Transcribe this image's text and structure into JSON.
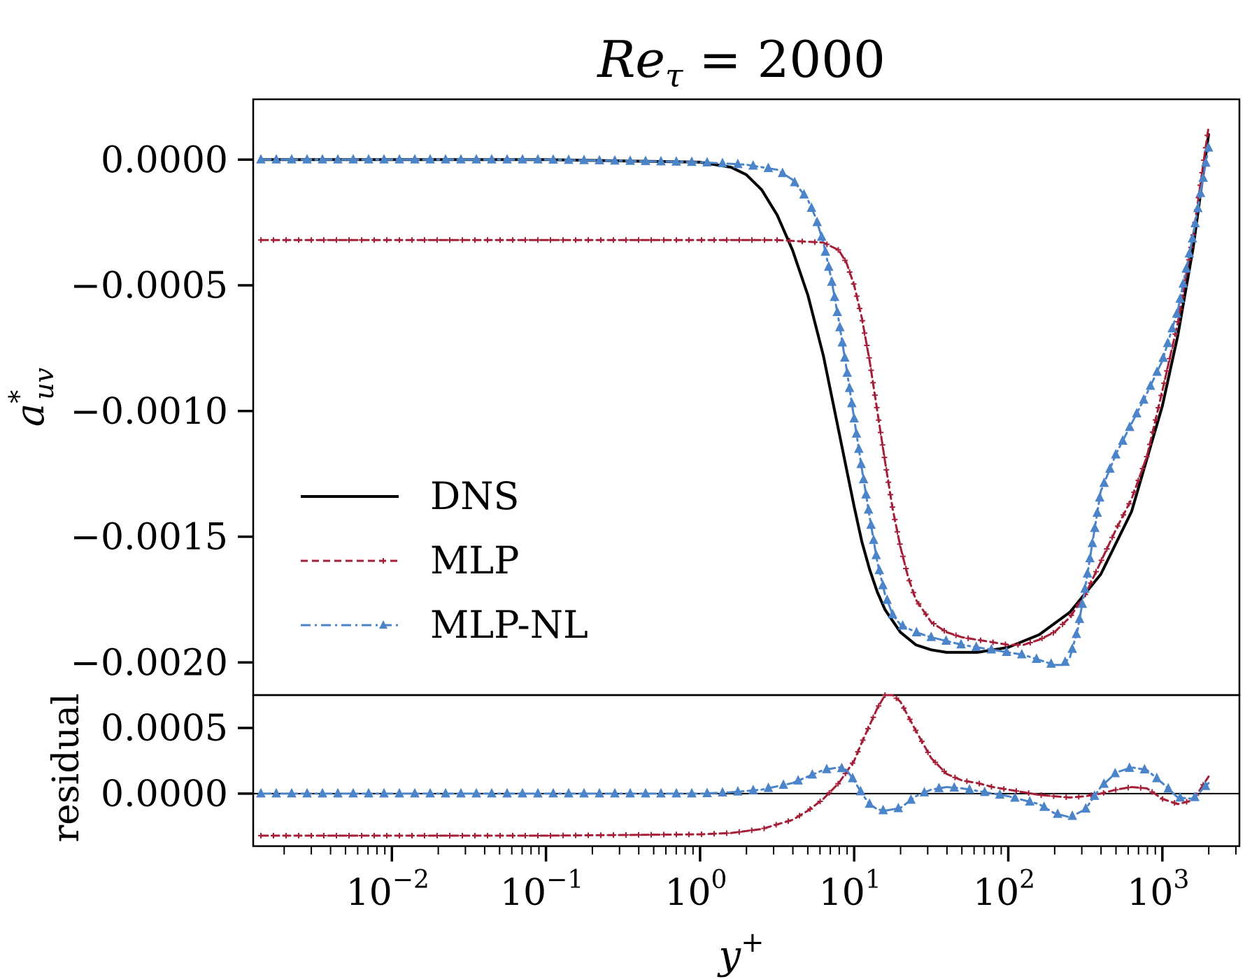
{
  "chart_data": [
    {
      "type": "line",
      "panel": "main",
      "title": "Re_τ = 2000",
      "title_parts": {
        "base": "Re",
        "sub": "τ",
        "rest": " = 2000"
      },
      "xlabel": "y+",
      "xlabel_parts": {
        "base": "y",
        "sup": "+"
      },
      "ylabel": "a*_uv",
      "ylabel_parts": {
        "base": "a",
        "sup": "*",
        "sub": "uv"
      },
      "xscale": "log",
      "xlim_log10": [
        -2.9,
        3.5
      ],
      "ylim": [
        -0.00213,
        0.00024
      ],
      "yticks": [
        0.0,
        -0.0005,
        -0.001,
        -0.0015,
        -0.002
      ],
      "ytick_labels": [
        "0.0000",
        "−0.0005",
        "−0.0010",
        "−0.0015",
        "−0.0020"
      ],
      "legend_position": "lower-left",
      "series": [
        {
          "name": "DNS",
          "color": "#000000",
          "style": "solid",
          "marker": "none",
          "x_log10": [
            -2.85,
            -1.0,
            0.0,
            0.2,
            0.3,
            0.4,
            0.5,
            0.6,
            0.7,
            0.8,
            0.85,
            0.9,
            0.95,
            1.0,
            1.05,
            1.1,
            1.15,
            1.2,
            1.3,
            1.4,
            1.5,
            1.6,
            1.7,
            1.8,
            1.9,
            2.0,
            2.2,
            2.4,
            2.6,
            2.8,
            3.0,
            3.1,
            3.2,
            3.3
          ],
          "y": [
            0.0,
            0.0,
            -1e-05,
            -3e-05,
            -6e-05,
            -0.00012,
            -0.00022,
            -0.00036,
            -0.00054,
            -0.00078,
            -0.00093,
            -0.00108,
            -0.00123,
            -0.00138,
            -0.00152,
            -0.00163,
            -0.00172,
            -0.00179,
            -0.00188,
            -0.00193,
            -0.00195,
            -0.00196,
            -0.00196,
            -0.00196,
            -0.00195,
            -0.00194,
            -0.00189,
            -0.0018,
            -0.00165,
            -0.0014,
            -0.00098,
            -0.0007,
            -0.00035,
            0.0001
          ]
        },
        {
          "name": "MLP",
          "color": "#A51E37",
          "style": "dashed",
          "marker": "plus",
          "x_log10": [
            -2.85,
            -1.0,
            0.0,
            0.5,
            0.8,
            0.9,
            0.95,
            1.0,
            1.05,
            1.1,
            1.15,
            1.2,
            1.25,
            1.3,
            1.35,
            1.4,
            1.5,
            1.6,
            1.7,
            1.8,
            1.9,
            2.0,
            2.1,
            2.2,
            2.3,
            2.4,
            2.5,
            2.6,
            2.7,
            2.8,
            2.9,
            3.0,
            3.1,
            3.2,
            3.3
          ],
          "y": [
            -0.00032,
            -0.00032,
            -0.00032,
            -0.00032,
            -0.00033,
            -0.00036,
            -0.00041,
            -0.0005,
            -0.00063,
            -0.0008,
            -0.001,
            -0.0012,
            -0.00139,
            -0.00154,
            -0.00166,
            -0.00175,
            -0.00184,
            -0.00188,
            -0.0019,
            -0.00191,
            -0.00192,
            -0.00193,
            -0.00193,
            -0.00191,
            -0.00188,
            -0.00182,
            -0.00173,
            -0.0016,
            -0.00147,
            -0.00135,
            -0.00118,
            -0.00092,
            -0.00065,
            -0.0003,
            0.00013
          ]
        },
        {
          "name": "MLP-NL",
          "color": "#4B84C8",
          "style": "dashdot",
          "marker": "triangle",
          "x_log10": [
            -2.85,
            -1.0,
            0.0,
            0.3,
            0.5,
            0.6,
            0.7,
            0.75,
            0.8,
            0.85,
            0.9,
            0.95,
            1.0,
            1.05,
            1.1,
            1.15,
            1.2,
            1.25,
            1.3,
            1.4,
            1.5,
            1.7,
            1.9,
            2.1,
            2.2,
            2.3,
            2.35,
            2.4,
            2.45,
            2.5,
            2.6,
            2.7,
            2.8,
            2.9,
            3.0,
            3.1,
            3.2,
            3.3
          ],
          "y": [
            0.0,
            0.0,
            -1e-05,
            -2e-05,
            -4e-05,
            -8e-05,
            -0.00016,
            -0.00023,
            -0.00033,
            -0.00047,
            -0.00064,
            -0.00083,
            -0.00103,
            -0.00123,
            -0.00142,
            -0.0016,
            -0.00173,
            -0.00181,
            -0.00185,
            -0.00188,
            -0.0019,
            -0.00193,
            -0.00195,
            -0.00197,
            -0.00199,
            -0.00201,
            -0.00201,
            -0.00198,
            -0.00187,
            -0.0017,
            -0.00132,
            -0.00117,
            -0.00105,
            -0.00093,
            -0.0008,
            -0.0006,
            -0.0003,
            5e-05
          ]
        }
      ]
    },
    {
      "type": "line",
      "panel": "residual",
      "ylabel": "residual",
      "xscale": "log",
      "xlim_log10": [
        -2.9,
        3.5
      ],
      "ylim": [
        -0.0004,
        0.00075
      ],
      "yticks": [
        0.0005,
        0.0
      ],
      "ytick_labels": [
        "0.0005",
        "0.0000"
      ],
      "xticks_log10": [
        -2,
        -1,
        0,
        1,
        2,
        3
      ],
      "xtick_labels": [
        {
          "base": "10",
          "sup": "−2"
        },
        {
          "base": "10",
          "sup": "−1"
        },
        {
          "base": "10",
          "sup": "0"
        },
        {
          "base": "10",
          "sup": "1"
        },
        {
          "base": "10",
          "sup": "2"
        },
        {
          "base": "10",
          "sup": "3"
        }
      ],
      "series": [
        {
          "name": "MLP",
          "color": "#A51E37",
          "style": "dashed",
          "marker": "plus",
          "x_log10": [
            -2.85,
            -1.0,
            0.0,
            0.2,
            0.4,
            0.6,
            0.7,
            0.8,
            0.9,
            1.0,
            1.05,
            1.1,
            1.15,
            1.2,
            1.25,
            1.3,
            1.4,
            1.5,
            1.6,
            1.7,
            1.8,
            1.9,
            2.0,
            2.2,
            2.4,
            2.5,
            2.6,
            2.7,
            2.8,
            2.9,
            3.0,
            3.1,
            3.2,
            3.3
          ],
          "y": [
            -0.00032,
            -0.00032,
            -0.00031,
            -0.0003,
            -0.00027,
            -0.0002,
            -0.00013,
            -4e-05,
            8e-05,
            0.00025,
            0.00039,
            0.00052,
            0.00065,
            0.00075,
            0.00075,
            0.0007,
            0.00048,
            0.00027,
            0.00015,
            0.0001,
            8e-05,
            5e-05,
            3e-05,
            -1e-05,
            -3e-05,
            -2e-05,
            0.0,
            3e-05,
            5e-05,
            4e-05,
            -4e-05,
            -8e-05,
            -5e-05,
            0.00013
          ]
        },
        {
          "name": "MLP-NL",
          "color": "#4B84C8",
          "style": "dashdot",
          "marker": "triangle",
          "x_log10": [
            -2.85,
            -1.0,
            0.0,
            0.2,
            0.4,
            0.6,
            0.7,
            0.8,
            0.9,
            0.95,
            1.0,
            1.05,
            1.1,
            1.15,
            1.2,
            1.3,
            1.4,
            1.5,
            1.6,
            1.7,
            1.8,
            1.9,
            2.0,
            2.2,
            2.3,
            2.4,
            2.5,
            2.6,
            2.7,
            2.8,
            2.9,
            3.0,
            3.1,
            3.2,
            3.3
          ],
          "y": [
            0.0,
            0.0,
            0.0,
            1e-05,
            3e-05,
            8e-05,
            0.00013,
            0.00018,
            0.0002,
            0.00018,
            0.0001,
            0.0,
            -8e-05,
            -0.00012,
            -0.00013,
            -0.00011,
            -2e-05,
            3e-05,
            5e-05,
            4e-05,
            2e-05,
            0.0,
            -2e-05,
            -8e-05,
            -0.00015,
            -0.00018,
            -0.00012,
            5e-05,
            0.00016,
            0.0002,
            0.00018,
            8e-05,
            -3e-05,
            -4e-05,
            8e-05
          ]
        }
      ]
    }
  ]
}
